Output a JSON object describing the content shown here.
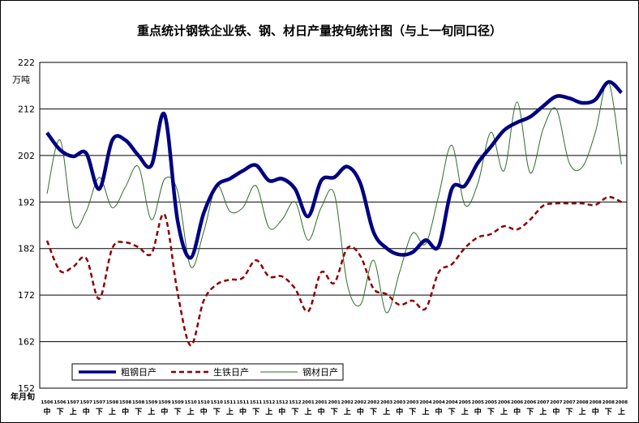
{
  "chart_data": {
    "type": "line",
    "title": "重点统计钢铁企业铁、钢、材日产量按旬统计图（与上一旬同口径）",
    "ylabel": "万吨",
    "xlabel": "年月旬",
    "ylim": [
      152,
      222
    ],
    "yticks": [
      152,
      162,
      172,
      182,
      192,
      202,
      212,
      222
    ],
    "grid": true,
    "legend_position": "bottom-left",
    "x_months": [
      "1506",
      "1506",
      "1507",
      "1507",
      "1507",
      "1508",
      "1508",
      "1508",
      "1509",
      "1509",
      "1509",
      "1510",
      "1510",
      "1510",
      "1511",
      "1511",
      "1511",
      "1512",
      "1512",
      "1512",
      "2001",
      "2001",
      "2001",
      "2002",
      "2002",
      "2002",
      "2003",
      "2003",
      "2003",
      "2004",
      "2004",
      "2004",
      "2005",
      "2005",
      "2005",
      "2006",
      "2006",
      "2006",
      "2007",
      "2007",
      "2007",
      "2008",
      "2008",
      "2008",
      "2008"
    ],
    "x_periods": [
      "中",
      "下",
      "上",
      "中",
      "下",
      "上",
      "中",
      "下",
      "上",
      "中",
      "下",
      "上",
      "中",
      "下",
      "上",
      "中",
      "下",
      "上",
      "中",
      "下",
      "上",
      "中",
      "下",
      "上",
      "中",
      "下",
      "上",
      "中",
      "下",
      "上",
      "中",
      "下",
      "上",
      "中",
      "下",
      "上",
      "中",
      "下",
      "上",
      "中",
      "下",
      "上",
      "中",
      "下",
      "上"
    ],
    "series": [
      {
        "name": "粗钢日产",
        "color": "#000080",
        "style": "solid-thick",
        "values": [
          206.9,
          203.2,
          201.8,
          202.5,
          194.8,
          205.3,
          205.3,
          202,
          199.9,
          210.8,
          188,
          180,
          189.6,
          195.5,
          197,
          198.7,
          199.9,
          196.6,
          197,
          194.8,
          188.9,
          196.6,
          197.3,
          199.6,
          196,
          185.6,
          182.1,
          180.7,
          181.2,
          183.8,
          182.5,
          194.8,
          195.5,
          200.4,
          203.9,
          207.4,
          209.1,
          210.3,
          212.6,
          214.7,
          214.3,
          213.3,
          214,
          217.8,
          215.5
        ]
      },
      {
        "name": "生铁日产",
        "color": "#8B0000",
        "style": "dashed",
        "values": [
          183.7,
          177.2,
          178.1,
          179.9,
          171.2,
          182.1,
          183.3,
          182.3,
          180.9,
          189.3,
          172.5,
          161.2,
          170.8,
          174.3,
          175.3,
          175.7,
          179.5,
          176,
          176,
          173.4,
          168.5,
          176.9,
          174.6,
          182.1,
          180.4,
          173.4,
          172.2,
          169.9,
          170.8,
          169.1,
          176.9,
          178.6,
          182.1,
          184.4,
          185.1,
          186.8,
          186.1,
          188.2,
          191.2,
          191.7,
          191.7,
          191.7,
          191.4,
          193.1,
          192
        ]
      },
      {
        "name": "钢材日产",
        "color": "#2E6B2E",
        "style": "solid-thin",
        "values": [
          193.8,
          205.3,
          187.3,
          190,
          197.3,
          190.8,
          195.2,
          199.6,
          188.2,
          196.9,
          194.3,
          178.1,
          185.6,
          195.5,
          190,
          190.8,
          195.5,
          186.5,
          188.2,
          192,
          183.8,
          190.8,
          193.8,
          174.3,
          169.9,
          179.5,
          168.2,
          176.9,
          185.3,
          183,
          193.4,
          204.2,
          191.4,
          196,
          207,
          198.7,
          213.5,
          198.3,
          207.7,
          212,
          200.4,
          199.5,
          207,
          217.8,
          200.1
        ]
      }
    ]
  }
}
